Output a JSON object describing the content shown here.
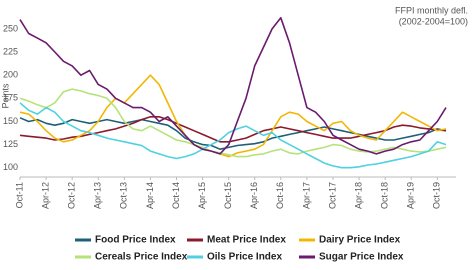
{
  "chart_data": {
    "type": "line",
    "annotations": [
      "FFPI monthly defl.",
      "(2002-2004=100)"
    ],
    "y_label": "Points",
    "categories": [
      "Oct-11",
      null,
      null,
      "Apr-12",
      null,
      null,
      "Oct-12",
      null,
      null,
      "Apr-13",
      null,
      null,
      "Oct-13",
      null,
      null,
      "Apr-14",
      null,
      null,
      "Oct-14",
      null,
      null,
      "Apr-15",
      null,
      null,
      "Oct-15",
      null,
      null,
      "Apr-16",
      null,
      null,
      "Oct-16",
      null,
      null,
      "Apr-17",
      null,
      null,
      "Oct-17",
      null,
      null,
      "Apr-18",
      null,
      null,
      "Oct-18",
      null,
      null,
      "Apr-19",
      null,
      null,
      "Oct-19",
      null
    ],
    "ylim": [
      90,
      265
    ],
    "yticks": [
      100,
      125,
      150,
      175,
      200,
      225,
      250
    ],
    "grid": false,
    "series": [
      {
        "name": "Food Price Index",
        "color": "#1f5f7a",
        "values": [
          154,
          150,
          152,
          148,
          146,
          148,
          152,
          150,
          148,
          150,
          152,
          150,
          148,
          150,
          152,
          150,
          148,
          146,
          140,
          132,
          128,
          125,
          124,
          120,
          122,
          124,
          125,
          126,
          128,
          132,
          134,
          136,
          138,
          140,
          142,
          144,
          142,
          140,
          138,
          136,
          134,
          132,
          130,
          130,
          132,
          134,
          136,
          138,
          142,
          140
        ]
      },
      {
        "name": "Meat Price Index",
        "color": "#8b1a2b",
        "values": [
          135,
          134,
          133,
          132,
          130,
          131,
          133,
          134,
          136,
          138,
          140,
          142,
          145,
          148,
          152,
          155,
          155,
          152,
          148,
          144,
          140,
          136,
          132,
          128,
          128,
          130,
          132,
          136,
          140,
          142,
          144,
          142,
          140,
          138,
          136,
          134,
          132,
          132,
          132,
          134,
          136,
          138,
          140,
          144,
          146,
          145,
          143,
          142,
          141,
          140
        ]
      },
      {
        "name": "Dairy Price Index",
        "color": "#f2b705",
        "values": [
          160,
          158,
          150,
          140,
          132,
          128,
          130,
          135,
          140,
          150,
          165,
          175,
          170,
          180,
          190,
          200,
          190,
          170,
          150,
          135,
          125,
          120,
          118,
          115,
          112,
          116,
          118,
          120,
          125,
          140,
          155,
          160,
          158,
          150,
          145,
          140,
          148,
          150,
          140,
          135,
          132,
          130,
          140,
          150,
          160,
          155,
          150,
          145,
          140,
          142
        ]
      },
      {
        "name": "Cereals Price Index",
        "color": "#b5e37a",
        "values": [
          175,
          172,
          168,
          165,
          170,
          182,
          185,
          183,
          180,
          178,
          175,
          165,
          150,
          142,
          140,
          145,
          140,
          135,
          130,
          128,
          125,
          122,
          118,
          116,
          114,
          112,
          112,
          114,
          115,
          118,
          120,
          116,
          115,
          118,
          120,
          122,
          125,
          124,
          120,
          118,
          117,
          118,
          120,
          122,
          120,
          118,
          117,
          118,
          120,
          122
        ]
      },
      {
        "name": "Oils Price Index",
        "color": "#4fd1e0",
        "values": [
          170,
          162,
          158,
          165,
          160,
          150,
          145,
          140,
          138,
          135,
          132,
          130,
          128,
          126,
          124,
          118,
          115,
          112,
          110,
          112,
          115,
          120,
          125,
          130,
          138,
          142,
          145,
          140,
          135,
          138,
          130,
          125,
          120,
          115,
          110,
          105,
          102,
          100,
          100,
          101,
          103,
          104,
          106,
          108,
          110,
          112,
          115,
          118,
          128,
          125
        ]
      },
      {
        "name": "Sugar Price Index",
        "color": "#6a1b6e",
        "values": [
          260,
          245,
          240,
          235,
          225,
          215,
          210,
          200,
          205,
          190,
          185,
          175,
          170,
          165,
          165,
          160,
          150,
          155,
          145,
          135,
          125,
          120,
          118,
          115,
          125,
          150,
          175,
          210,
          230,
          250,
          262,
          235,
          200,
          165,
          160,
          150,
          135,
          130,
          125,
          120,
          118,
          115,
          118,
          120,
          125,
          128,
          130,
          140,
          150,
          165
        ]
      }
    ]
  }
}
